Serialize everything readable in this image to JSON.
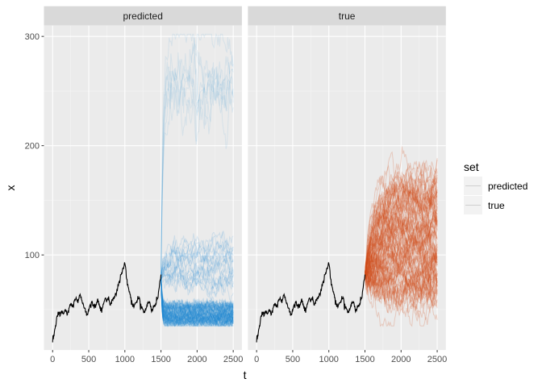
{
  "chart_data": {
    "type": "line",
    "facets": [
      "predicted",
      "true"
    ],
    "xlabel": "t",
    "ylabel": "x",
    "xlim": [
      -120,
      2620
    ],
    "ylim": [
      13,
      310
    ],
    "x_ticks": [
      0,
      500,
      1000,
      1500,
      2000,
      2500
    ],
    "y_ticks": [
      100,
      200,
      300
    ],
    "grid": true,
    "legend": {
      "title": "set",
      "position": "right",
      "entries": [
        "predicted",
        "true"
      ]
    },
    "colors": {
      "observed": "#000000",
      "predicted": "#1f88d2",
      "true": "#d24e1c",
      "panel_bg": "#ebebeb",
      "strip_bg": "#d9d9d9"
    },
    "observed_series": {
      "name": "observed",
      "x": [
        0,
        25,
        50,
        75,
        100,
        125,
        150,
        175,
        200,
        225,
        250,
        275,
        300,
        325,
        350,
        375,
        400,
        425,
        450,
        475,
        500,
        525,
        550,
        575,
        600,
        625,
        650,
        675,
        700,
        725,
        750,
        775,
        800,
        825,
        850,
        875,
        900,
        925,
        950,
        975,
        1000,
        1025,
        1050,
        1075,
        1100,
        1125,
        1150,
        1175,
        1200,
        1225,
        1250,
        1275,
        1300,
        1325,
        1350,
        1375,
        1400,
        1425,
        1450,
        1475,
        1500
      ],
      "values": [
        20,
        30,
        38,
        48,
        44,
        49,
        46,
        50,
        45,
        51,
        55,
        52,
        58,
        61,
        56,
        63,
        59,
        55,
        51,
        46,
        49,
        53,
        57,
        51,
        55,
        60,
        53,
        49,
        55,
        60,
        58,
        62,
        54,
        58,
        60,
        64,
        70,
        76,
        82,
        88,
        92,
        78,
        70,
        64,
        55,
        52,
        56,
        59,
        61,
        53,
        50,
        47,
        52,
        57,
        55,
        49,
        52,
        55,
        60,
        70,
        82
      ]
    },
    "forecast_range": {
      "start": 1500,
      "end": 2500,
      "predicted": {
        "main_band": [
          36,
          55
        ],
        "high_paths": [
          70,
          115
        ],
        "extreme_paths": [
          230,
          300
        ]
      },
      "true": {
        "band": [
          40,
          180
        ],
        "center": 125
      }
    }
  }
}
